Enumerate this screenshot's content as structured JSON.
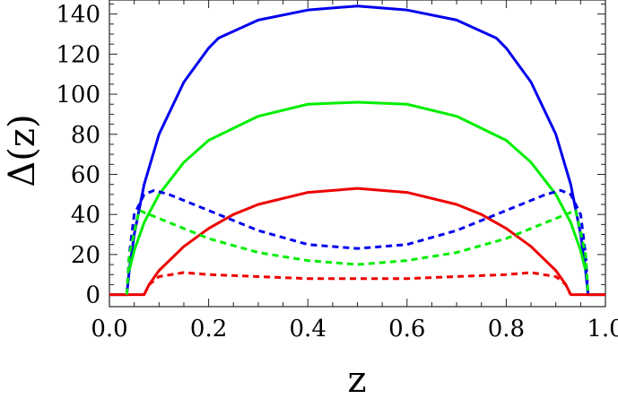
{
  "chart_data": {
    "type": "line",
    "title": "",
    "xlabel": "z",
    "ylabel": "Δ(z)",
    "xlim": [
      0,
      1
    ],
    "ylim": [
      -6,
      147
    ],
    "grid": false,
    "x_ticks": [
      0.0,
      0.2,
      0.4,
      0.6,
      0.8,
      1.0
    ],
    "x_tick_labels": [
      "0.0",
      "0.2",
      "0.4",
      "0.6",
      "0.8",
      "1.0"
    ],
    "y_ticks": [
      0,
      20,
      40,
      60,
      80,
      100,
      120,
      140
    ],
    "y_tick_labels": [
      "0",
      "20",
      "40",
      "60",
      "80",
      "100",
      "120",
      "140"
    ],
    "series": [
      {
        "color": "#0000ee",
        "style": "solid",
        "points": [
          [
            0.0,
            0
          ],
          [
            0.035,
            0
          ],
          [
            0.04,
            12
          ],
          [
            0.05,
            30
          ],
          [
            0.07,
            55
          ],
          [
            0.1,
            80
          ],
          [
            0.15,
            106
          ],
          [
            0.2,
            123
          ],
          [
            0.22,
            128
          ],
          [
            0.3,
            137
          ],
          [
            0.4,
            142
          ],
          [
            0.5,
            144
          ],
          [
            0.6,
            142
          ],
          [
            0.7,
            137
          ],
          [
            0.78,
            128
          ],
          [
            0.8,
            123
          ],
          [
            0.85,
            106
          ],
          [
            0.9,
            80
          ],
          [
            0.93,
            55
          ],
          [
            0.95,
            30
          ],
          [
            0.96,
            12
          ],
          [
            0.965,
            0
          ],
          [
            1.0,
            0
          ]
        ]
      },
      {
        "color": "#00ee00",
        "style": "solid",
        "points": [
          [
            0.04,
            12
          ],
          [
            0.05,
            22
          ],
          [
            0.07,
            36
          ],
          [
            0.1,
            50
          ],
          [
            0.15,
            66
          ],
          [
            0.2,
            77
          ],
          [
            0.3,
            89
          ],
          [
            0.4,
            95
          ],
          [
            0.5,
            96
          ],
          [
            0.6,
            95
          ],
          [
            0.7,
            89
          ],
          [
            0.8,
            77
          ],
          [
            0.85,
            66
          ],
          [
            0.9,
            50
          ],
          [
            0.93,
            36
          ],
          [
            0.95,
            22
          ],
          [
            0.96,
            12
          ]
        ]
      },
      {
        "color": "#ee0000",
        "style": "solid",
        "points": [
          [
            0.0,
            0
          ],
          [
            0.07,
            0
          ],
          [
            0.08,
            5
          ],
          [
            0.1,
            12
          ],
          [
            0.15,
            24
          ],
          [
            0.2,
            33
          ],
          [
            0.25,
            40
          ],
          [
            0.3,
            45
          ],
          [
            0.4,
            51
          ],
          [
            0.5,
            53
          ],
          [
            0.6,
            51
          ],
          [
            0.7,
            45
          ],
          [
            0.75,
            40
          ],
          [
            0.8,
            33
          ],
          [
            0.85,
            24
          ],
          [
            0.9,
            12
          ],
          [
            0.92,
            5
          ],
          [
            0.93,
            0
          ],
          [
            1.0,
            0
          ]
        ]
      },
      {
        "color": "#0000ee",
        "style": "dashed",
        "points": [
          [
            0.035,
            0
          ],
          [
            0.04,
            20
          ],
          [
            0.05,
            40
          ],
          [
            0.07,
            50
          ],
          [
            0.09,
            52
          ],
          [
            0.12,
            50
          ],
          [
            0.2,
            42
          ],
          [
            0.3,
            32
          ],
          [
            0.4,
            25
          ],
          [
            0.5,
            23
          ],
          [
            0.6,
            25
          ],
          [
            0.7,
            32
          ],
          [
            0.8,
            42
          ],
          [
            0.88,
            50
          ],
          [
            0.91,
            52
          ],
          [
            0.93,
            50
          ],
          [
            0.95,
            40
          ],
          [
            0.96,
            20
          ],
          [
            0.965,
            0
          ]
        ]
      },
      {
        "color": "#00ee00",
        "style": "dashed",
        "points": [
          [
            0.035,
            0
          ],
          [
            0.04,
            20
          ],
          [
            0.06,
            42
          ],
          [
            0.09,
            39
          ],
          [
            0.2,
            28
          ],
          [
            0.3,
            21
          ],
          [
            0.4,
            17
          ],
          [
            0.5,
            15
          ],
          [
            0.6,
            17
          ],
          [
            0.7,
            21
          ],
          [
            0.8,
            28
          ],
          [
            0.91,
            39
          ],
          [
            0.94,
            42
          ],
          [
            0.96,
            20
          ],
          [
            0.965,
            0
          ]
        ]
      },
      {
        "color": "#ee0000",
        "style": "dashed",
        "points": [
          [
            0.07,
            0
          ],
          [
            0.08,
            5
          ],
          [
            0.1,
            9
          ],
          [
            0.15,
            11
          ],
          [
            0.2,
            10
          ],
          [
            0.3,
            9
          ],
          [
            0.4,
            8
          ],
          [
            0.5,
            8
          ],
          [
            0.6,
            8
          ],
          [
            0.7,
            9
          ],
          [
            0.8,
            10
          ],
          [
            0.85,
            11
          ],
          [
            0.9,
            9
          ],
          [
            0.92,
            5
          ],
          [
            0.93,
            0
          ]
        ]
      }
    ]
  }
}
